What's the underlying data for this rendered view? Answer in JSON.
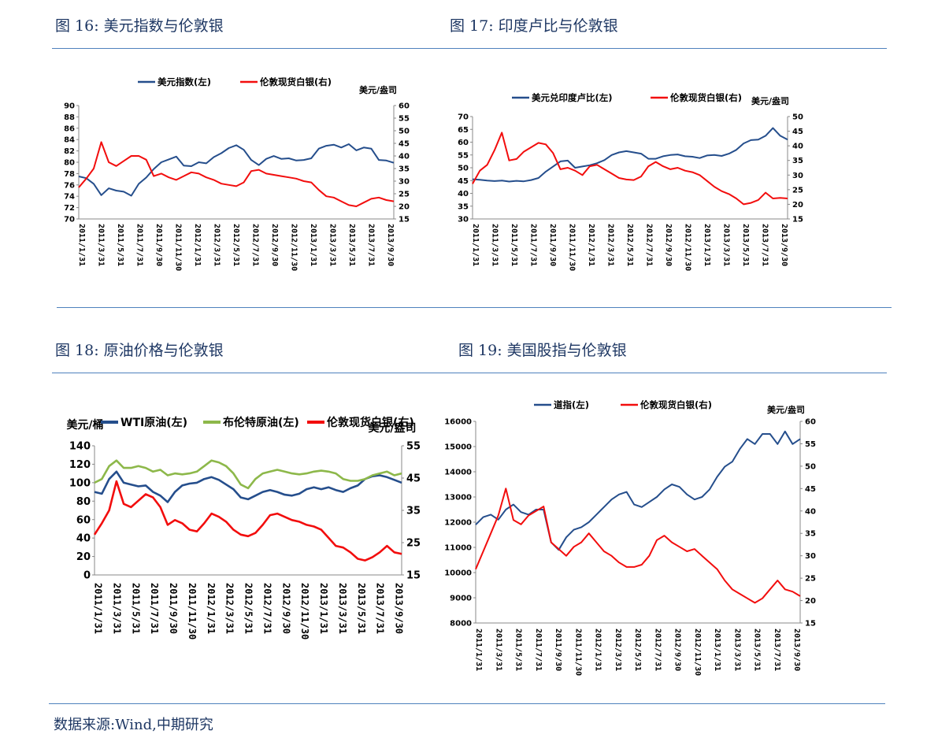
{
  "figures": {
    "fig16": {
      "title": "图 16: 美元指数与伦敦银"
    },
    "fig17": {
      "title": "图 17: 印度卢比与伦敦银"
    },
    "fig18": {
      "title": "图 18: 原油价格与伦敦银"
    },
    "fig19": {
      "title": "图 19: 美国股指与伦敦银"
    }
  },
  "source": "数据来源:Wind,中期研究",
  "colors": {
    "blue": "#254e8c",
    "red": "#f20d0d",
    "green": "#8db84a",
    "text": "#1f3864",
    "rule": "#4f81bd"
  },
  "chart_data": [
    {
      "id": "fig16",
      "type": "line",
      "x_ticks": [
        "2011/1/31",
        "2011/3/31",
        "2011/5/31",
        "2011/7/31",
        "2011/9/30",
        "2011/11/30",
        "2012/1/31",
        "2012/3/31",
        "2012/5/31",
        "2012/7/31",
        "2012/9/30",
        "2012/11/30",
        "2013/1/31",
        "2013/3/31",
        "2013/5/31",
        "2013/7/31",
        "2013/9/30"
      ],
      "y_left": {
        "range": [
          70,
          90
        ],
        "ticks": [
          70,
          72,
          74,
          76,
          78,
          80,
          82,
          84,
          86,
          88,
          90
        ]
      },
      "y_right": {
        "range": [
          15,
          60
        ],
        "ticks": [
          15,
          20,
          25,
          30,
          35,
          40,
          45,
          50,
          55,
          60
        ],
        "unit": "美元/盎司"
      },
      "series": [
        {
          "name": "美元指数(左)",
          "axis": "left",
          "color": "#254e8c",
          "values": [
            77.5,
            77.2,
            76.2,
            74.2,
            75.4,
            75.0,
            74.8,
            74.1,
            76.2,
            77.3,
            78.8,
            80.0,
            80.5,
            81.0,
            79.4,
            79.3,
            80.0,
            79.8,
            80.9,
            81.6,
            82.5,
            83.0,
            82.2,
            80.4,
            79.5,
            80.6,
            81.1,
            80.6,
            80.7,
            80.3,
            80.4,
            80.7,
            82.4,
            82.9,
            83.1,
            82.6,
            83.2,
            82.1,
            82.6,
            82.4,
            80.4,
            80.3,
            79.9
          ]
        },
        {
          "name": "伦敦现货白银(右)",
          "axis": "right",
          "color": "#f20d0d",
          "values": [
            27.5,
            31.0,
            35.0,
            45.5,
            37.5,
            36.0,
            38.0,
            40.0,
            40.0,
            38.5,
            32.0,
            33.0,
            31.5,
            30.5,
            32.0,
            33.5,
            33.0,
            31.5,
            30.5,
            29.0,
            28.5,
            28.0,
            29.5,
            34.0,
            34.5,
            33.0,
            32.5,
            32.0,
            31.5,
            31.0,
            30.0,
            29.5,
            26.5,
            24.0,
            23.5,
            22.0,
            20.5,
            20.0,
            21.5,
            23.0,
            23.5,
            22.5,
            22.0
          ]
        }
      ]
    },
    {
      "id": "fig17",
      "type": "line",
      "x_ticks": [
        "2011/1/31",
        "2011/3/31",
        "2011/5/31",
        "2011/7/31",
        "2011/9/30",
        "2011/11/30",
        "2012/1/31",
        "2012/3/31",
        "2012/5/31",
        "2012/7/31",
        "2012/9/30",
        "2012/11/30",
        "2013/1/31",
        "2013/3/31",
        "2013/5/31",
        "2013/7/31",
        "2013/9/30"
      ],
      "y_left": {
        "range": [
          30,
          70
        ],
        "ticks": [
          30,
          35,
          40,
          45,
          50,
          55,
          60,
          65,
          70
        ]
      },
      "y_right": {
        "range": [
          15,
          50
        ],
        "ticks": [
          15,
          20,
          25,
          30,
          35,
          40,
          45,
          50
        ],
        "unit": "美元/盎司"
      },
      "series": [
        {
          "name": "美元兑印度卢比(左)",
          "axis": "left",
          "color": "#254e8c",
          "values": [
            45.5,
            45.3,
            45.0,
            44.8,
            45.0,
            44.6,
            44.9,
            44.7,
            45.2,
            46.0,
            48.5,
            50.5,
            52.5,
            52.8,
            50.0,
            50.5,
            51.0,
            51.8,
            53.0,
            55.0,
            56.0,
            56.5,
            56.0,
            55.5,
            53.5,
            53.5,
            54.5,
            55.0,
            55.2,
            54.5,
            54.3,
            53.8,
            54.8,
            55.0,
            54.6,
            55.5,
            57.0,
            59.5,
            60.8,
            61.0,
            62.5,
            65.5,
            62.5,
            61.0
          ]
        },
        {
          "name": "伦敦现货白银(右)",
          "axis": "right",
          "color": "#f20d0d",
          "values": [
            27.0,
            31.5,
            33.5,
            38.5,
            44.5,
            35.0,
            35.5,
            38.0,
            39.5,
            41.0,
            40.5,
            37.5,
            32.0,
            32.5,
            31.5,
            30.0,
            33.0,
            33.5,
            32.0,
            30.5,
            29.0,
            28.5,
            28.3,
            29.5,
            33.0,
            34.5,
            33.0,
            32.0,
            32.5,
            31.5,
            31.0,
            30.0,
            28.0,
            26.0,
            24.5,
            23.5,
            22.0,
            20.0,
            20.5,
            21.5,
            24.0,
            22.0,
            22.2,
            22.0
          ]
        }
      ]
    },
    {
      "id": "fig18",
      "type": "line",
      "x_ticks": [
        "2011/1/31",
        "2011/3/31",
        "2011/5/31",
        "2011/7/31",
        "2011/9/30",
        "2011/11/30",
        "2012/1/31",
        "2012/3/31",
        "2012/5/31",
        "2012/7/31",
        "2012/9/30",
        "2012/11/30",
        "2013/1/31",
        "2013/3/31",
        "2013/5/31",
        "2013/7/31",
        "2013/9/30"
      ],
      "y_left": {
        "range": [
          0,
          140
        ],
        "ticks": [
          0,
          20,
          40,
          60,
          80,
          100,
          120,
          140
        ],
        "unit": "美元/桶"
      },
      "y_right": {
        "range": [
          15,
          55
        ],
        "ticks": [
          15,
          25,
          35,
          45,
          55
        ],
        "unit": "美元/盎司"
      },
      "series": [
        {
          "name": "WTI原油(左)",
          "axis": "left",
          "color": "#254e8c",
          "values": [
            90,
            88,
            104,
            112,
            100,
            98,
            96,
            97,
            90,
            86,
            79,
            90,
            97,
            99,
            100,
            104,
            106,
            103,
            98,
            93,
            84,
            82,
            86,
            90,
            92,
            90,
            87,
            86,
            88,
            93,
            95,
            93,
            95,
            92,
            90,
            94,
            97,
            104,
            107,
            108,
            106,
            103,
            100
          ]
        },
        {
          "name": "布伦特原油(左)",
          "axis": "left",
          "color": "#8db84a",
          "values": [
            100,
            104,
            118,
            124,
            116,
            116,
            118,
            116,
            112,
            114,
            108,
            110,
            109,
            110,
            112,
            118,
            124,
            122,
            118,
            110,
            98,
            94,
            104,
            110,
            112,
            114,
            112,
            110,
            109,
            110,
            112,
            113,
            112,
            110,
            104,
            102,
            102,
            104,
            108,
            110,
            112,
            108,
            110
          ]
        },
        {
          "name": "伦敦现货白银(右)",
          "axis": "right",
          "color": "#f20d0d",
          "values": [
            27.5,
            31.0,
            35.0,
            44.0,
            37.0,
            36.0,
            38.0,
            40.0,
            39.0,
            36.0,
            30.5,
            32.0,
            31.0,
            29.0,
            28.5,
            31.0,
            34.0,
            33.0,
            31.5,
            29.0,
            27.5,
            27.0,
            28.0,
            30.5,
            33.5,
            34.0,
            33.0,
            32.0,
            31.5,
            30.5,
            30.0,
            29.0,
            26.5,
            24.0,
            23.5,
            22.0,
            20.0,
            19.5,
            20.5,
            22.0,
            24.0,
            22.0,
            21.5
          ]
        }
      ]
    },
    {
      "id": "fig19",
      "type": "line",
      "x_ticks": [
        "2011/1/31",
        "2011/3/31",
        "2011/5/31",
        "2011/7/31",
        "2011/9/30",
        "2011/11/30",
        "2012/1/31",
        "2012/3/31",
        "2012/5/31",
        "2012/7/31",
        "2012/9/30",
        "2012/11/30",
        "2013/1/31",
        "2013/3/31",
        "2013/5/31",
        "2013/7/31",
        "2013/9/30"
      ],
      "y_left": {
        "range": [
          8000,
          16000
        ],
        "ticks": [
          8000,
          9000,
          10000,
          11000,
          12000,
          13000,
          14000,
          15000,
          16000
        ]
      },
      "y_right": {
        "range": [
          15,
          60
        ],
        "ticks": [
          15,
          20,
          25,
          30,
          35,
          40,
          45,
          50,
          55,
          60
        ],
        "unit": "美元/盎司"
      },
      "series": [
        {
          "name": "道指(左)",
          "axis": "left",
          "color": "#254e8c",
          "values": [
            11900,
            12200,
            12300,
            12100,
            12500,
            12700,
            12400,
            12300,
            12500,
            12500,
            11200,
            10900,
            11400,
            11700,
            11800,
            12000,
            12300,
            12600,
            12900,
            13100,
            13200,
            12700,
            12600,
            12800,
            13000,
            13300,
            13500,
            13400,
            13100,
            12900,
            13000,
            13300,
            13800,
            14200,
            14400,
            14900,
            15300,
            15100,
            15500,
            15500,
            15100,
            15600,
            15100,
            15300
          ]
        },
        {
          "name": "伦敦现货白银(右)",
          "axis": "right",
          "color": "#f20d0d",
          "values": [
            27.0,
            31.0,
            35.0,
            39.0,
            45.0,
            38.0,
            37.0,
            39.0,
            40.0,
            41.0,
            33.0,
            31.5,
            30.0,
            32.0,
            33.0,
            35.0,
            33.0,
            31.0,
            30.0,
            28.5,
            27.5,
            27.5,
            28.0,
            30.0,
            33.5,
            34.5,
            33.0,
            32.0,
            31.0,
            31.5,
            30.0,
            28.5,
            27.0,
            24.5,
            22.5,
            21.5,
            20.5,
            19.5,
            20.5,
            22.5,
            24.5,
            22.5,
            22.0,
            21.0
          ]
        }
      ]
    }
  ],
  "legends": {
    "fig16": [
      "美元指数(左)",
      "伦敦现货白银(右)"
    ],
    "fig17": [
      "美元兑印度卢比(左)",
      "伦敦现货白银(右)"
    ],
    "fig18": [
      "WTI原油(左)",
      "布伦特原油(左)",
      "伦敦现货白银(右)"
    ],
    "fig19": [
      "道指(左)",
      "伦敦现货白银(右)"
    ]
  }
}
